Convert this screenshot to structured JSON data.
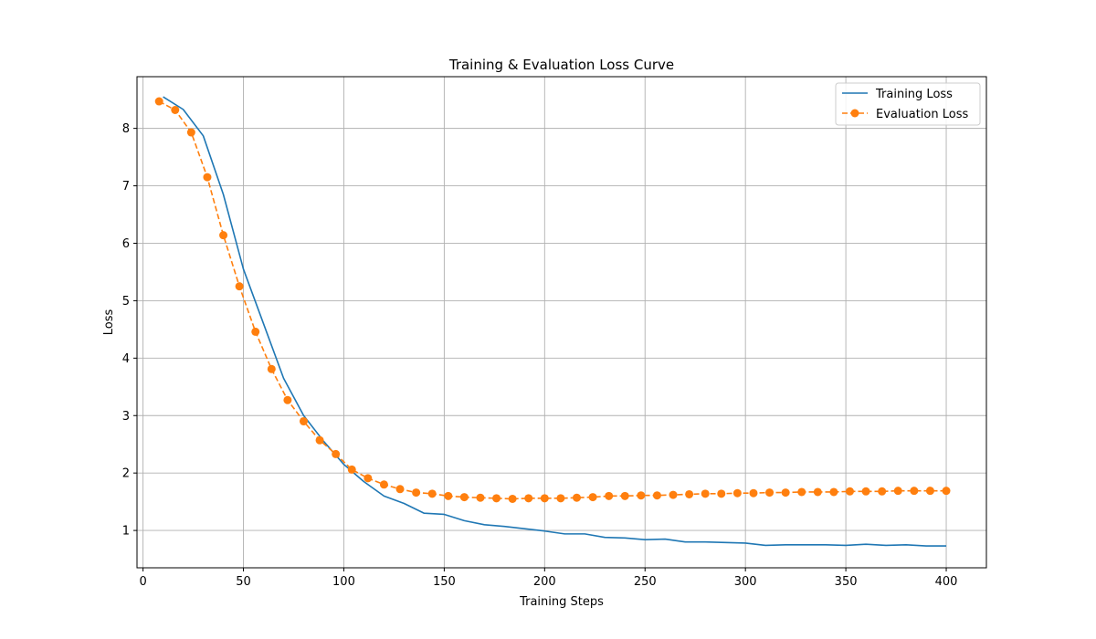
{
  "chart_data": {
    "type": "line",
    "title": "Training & Evaluation Loss Curve",
    "xlabel": "Training Steps",
    "ylabel": "Loss",
    "xlim": [
      -3,
      420
    ],
    "ylim": [
      0.35,
      8.9
    ],
    "xticks": [
      0,
      50,
      100,
      150,
      200,
      250,
      300,
      350,
      400
    ],
    "yticks": [
      1,
      2,
      3,
      4,
      5,
      6,
      7,
      8
    ],
    "grid": true,
    "legend_position": "top-right",
    "series": [
      {
        "name": "Training Loss",
        "color": "#1f77b4",
        "style": "solid",
        "marker": "none",
        "x": [
          10,
          20,
          30,
          40,
          50,
          60,
          70,
          80,
          90,
          100,
          110,
          120,
          130,
          140,
          150,
          160,
          170,
          180,
          190,
          200,
          210,
          220,
          230,
          240,
          250,
          260,
          270,
          280,
          290,
          300,
          310,
          320,
          330,
          340,
          350,
          360,
          370,
          380,
          390,
          400
        ],
        "y": [
          8.55,
          8.33,
          7.87,
          6.85,
          5.55,
          4.6,
          3.65,
          3.0,
          2.55,
          2.15,
          1.85,
          1.6,
          1.47,
          1.3,
          1.28,
          1.17,
          1.1,
          1.07,
          1.03,
          0.99,
          0.94,
          0.94,
          0.88,
          0.87,
          0.84,
          0.85,
          0.8,
          0.8,
          0.79,
          0.78,
          0.74,
          0.75,
          0.75,
          0.75,
          0.74,
          0.76,
          0.74,
          0.75,
          0.73,
          0.73
        ]
      },
      {
        "name": "Evaluation Loss",
        "color": "#ff7f0e",
        "style": "dashed",
        "marker": "circle",
        "x": [
          8,
          16,
          24,
          32,
          40,
          48,
          56,
          64,
          72,
          80,
          88,
          96,
          104,
          112,
          120,
          128,
          136,
          144,
          152,
          160,
          168,
          176,
          184,
          192,
          200,
          208,
          216,
          224,
          232,
          240,
          248,
          256,
          264,
          272,
          280,
          288,
          296,
          304,
          312,
          320,
          328,
          336,
          344,
          352,
          360,
          368,
          376,
          384,
          392,
          400
        ],
        "y": [
          8.47,
          8.32,
          7.93,
          7.15,
          6.14,
          5.25,
          4.46,
          3.81,
          3.27,
          2.9,
          2.57,
          2.33,
          2.06,
          1.91,
          1.8,
          1.72,
          1.66,
          1.64,
          1.6,
          1.58,
          1.57,
          1.56,
          1.55,
          1.56,
          1.56,
          1.56,
          1.57,
          1.58,
          1.6,
          1.6,
          1.61,
          1.61,
          1.62,
          1.63,
          1.64,
          1.64,
          1.65,
          1.65,
          1.66,
          1.66,
          1.67,
          1.67,
          1.67,
          1.68,
          1.68,
          1.68,
          1.69,
          1.69,
          1.69,
          1.69
        ]
      }
    ]
  }
}
